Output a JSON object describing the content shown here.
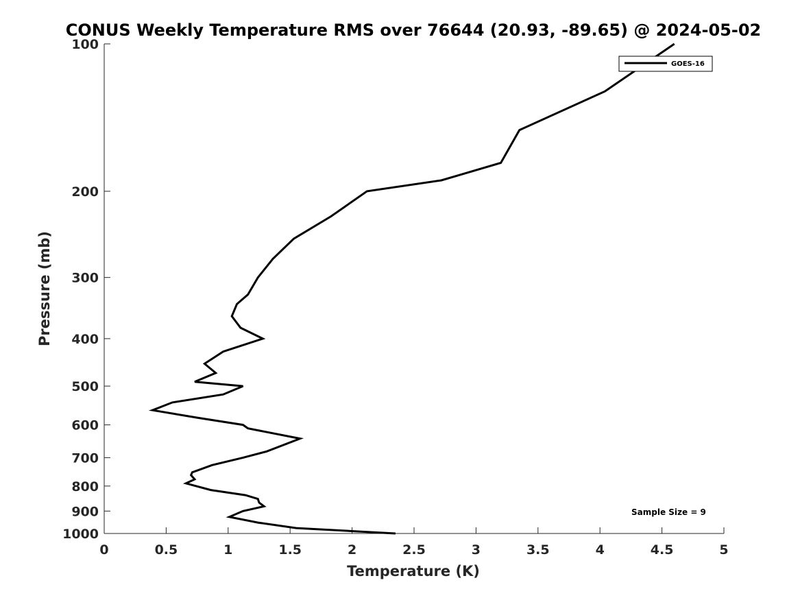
{
  "chart_data": {
    "type": "line",
    "title": "CONUS Weekly Temperature RMS over 76644 (20.93, -89.65) @ 2024-05-02",
    "xlabel": "Temperature (K)",
    "ylabel": "Pressure (mb)",
    "xlim": [
      0,
      5
    ],
    "ylim": [
      100,
      1000
    ],
    "yscale": "log",
    "y_reversed": true,
    "grid": false,
    "legend_position": "top-right",
    "x_ticks": [
      0,
      0.5,
      1,
      1.5,
      2,
      2.5,
      3,
      3.5,
      4,
      4.5,
      5
    ],
    "x_tick_labels": [
      "0",
      "0.5",
      "1",
      "1.5",
      "2",
      "2.5",
      "3",
      "3.5",
      "4",
      "4.5",
      "5"
    ],
    "y_ticks": [
      100,
      200,
      300,
      400,
      500,
      600,
      700,
      800,
      900,
      1000
    ],
    "y_tick_labels": [
      "100",
      "200",
      "300",
      "400",
      "500",
      "600",
      "700",
      "800",
      "900",
      "1000"
    ],
    "series": [
      {
        "name": "GOES-16",
        "color": "#000000",
        "points": [
          [
            4.6,
            100
          ],
          [
            4.04,
            125
          ],
          [
            3.35,
            150
          ],
          [
            3.2,
            175
          ],
          [
            2.72,
            190
          ],
          [
            2.12,
            200
          ],
          [
            1.83,
            225
          ],
          [
            1.53,
            250
          ],
          [
            1.36,
            275
          ],
          [
            1.24,
            300
          ],
          [
            1.16,
            325
          ],
          [
            1.07,
            340
          ],
          [
            1.03,
            360
          ],
          [
            1.1,
            380
          ],
          [
            1.28,
            400
          ],
          [
            0.96,
            425
          ],
          [
            0.81,
            450
          ],
          [
            0.9,
            470
          ],
          [
            0.73,
            490
          ],
          [
            1.12,
            500
          ],
          [
            0.96,
            520
          ],
          [
            0.55,
            540
          ],
          [
            0.39,
            560
          ],
          [
            0.75,
            580
          ],
          [
            1.12,
            600
          ],
          [
            1.16,
            610
          ],
          [
            1.58,
            640
          ],
          [
            1.31,
            680
          ],
          [
            1.12,
            700
          ],
          [
            0.87,
            725
          ],
          [
            0.71,
            750
          ],
          [
            0.7,
            760
          ],
          [
            0.73,
            775
          ],
          [
            0.66,
            790
          ],
          [
            0.86,
            815
          ],
          [
            1.14,
            835
          ],
          [
            1.24,
            850
          ],
          [
            1.25,
            865
          ],
          [
            1.29,
            880
          ],
          [
            1.12,
            900
          ],
          [
            1.01,
            925
          ],
          [
            1.24,
            950
          ],
          [
            1.55,
            975
          ],
          [
            2.35,
            1000
          ]
        ]
      }
    ],
    "annotation": "Sample Size = 9"
  }
}
